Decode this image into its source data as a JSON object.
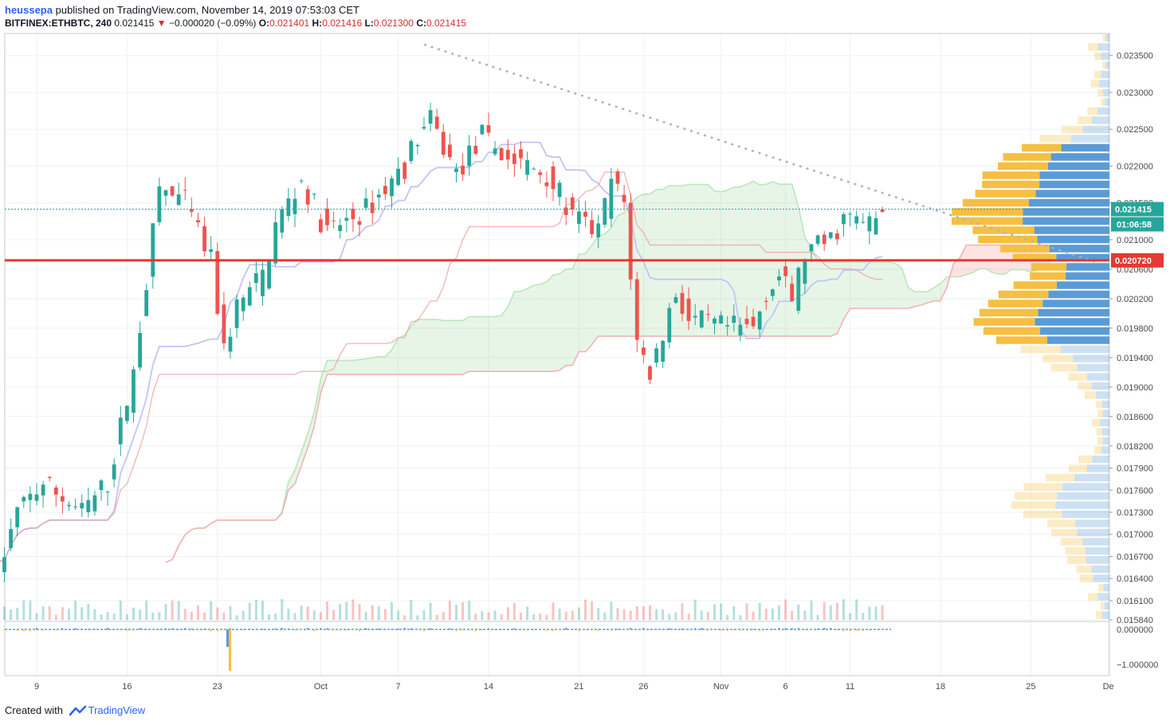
{
  "header": {
    "user": "heussepa",
    "published": "published on TradingView.com, November 14, 2019 07:53:03 CET",
    "symbol": "BITFINEX:ETHBTC, 240",
    "last": "0.021415",
    "change": "−0.000020 (−0.09%)",
    "o_label": "O:",
    "o": "0.021401",
    "h_label": "H:",
    "h": "0.021416",
    "l_label": "L:",
    "l": "0.021300",
    "c_label": "C:",
    "c": "0.021415"
  },
  "footer": {
    "created_with": "Created with",
    "brand": "TradingView"
  },
  "colors": {
    "up": "#26a69a",
    "down": "#ef5350",
    "support": "#e53935",
    "trend": "#b0b3b8",
    "conv": "#c5c3f5",
    "base": "#ef9a9a",
    "spanA": "#b8e8bc",
    "spanB": "#f3b3b3",
    "vp_up": "#5b9bd5",
    "vp_down": "#f5bf42",
    "price_tag": "#26a69a",
    "support_tag": "#e53935"
  },
  "chart_data": {
    "type": "candlestick",
    "symbol": "BITFINEX:ETHBTC",
    "interval": "240",
    "y_axis": {
      "ticks": [
        "0.023500",
        "0.023000",
        "0.022500",
        "0.022000",
        "0.021500",
        "0.021000",
        "0.020600",
        "0.020200",
        "0.019800",
        "0.019400",
        "0.019000",
        "0.018600",
        "0.018200",
        "0.017900",
        "0.017600",
        "0.017300",
        "0.017000",
        "0.016700",
        "0.016400",
        "0.016100",
        "0.015840"
      ],
      "range": [
        0.01584,
        0.0238
      ]
    },
    "x_axis": {
      "ticks": [
        "9",
        "16",
        "23",
        "Oct",
        "7",
        "14",
        "21",
        "26",
        "Nov",
        "6",
        "11",
        "18",
        "25",
        "De"
      ]
    },
    "last_price": {
      "value": 0.021415,
      "label": "0.021415",
      "countdown": "01:06:58"
    },
    "support_line": {
      "value": 0.02072,
      "label": "0.020720"
    },
    "trend_line": {
      "from": [
        "Oct 9",
        0.02365
      ],
      "to": [
        "Nov 30",
        0.0207
      ]
    },
    "anchors": [
      [
        "Sep 6",
        0.0162
      ],
      [
        "Sep 8",
        0.0173
      ],
      [
        "Sep 10",
        0.0177
      ],
      [
        "Sep 13",
        0.0173
      ],
      [
        "Sep 15",
        0.0177
      ],
      [
        "Sep 17",
        0.0192
      ],
      [
        "Sep 19",
        0.0217
      ],
      [
        "Sep 21",
        0.0215
      ],
      [
        "Sep 23",
        0.0207
      ],
      [
        "Sep 24",
        0.0195
      ],
      [
        "Sep 25",
        0.0201
      ],
      [
        "Sep 27",
        0.0205
      ],
      [
        "Sep 28",
        0.0212
      ],
      [
        "Sep 30",
        0.0218
      ],
      [
        "Oct 2",
        0.0211
      ],
      [
        "Oct 5",
        0.0214
      ],
      [
        "Oct 8",
        0.022
      ],
      [
        "Oct 9",
        0.0224
      ],
      [
        "Oct 10",
        0.0226
      ],
      [
        "Oct 12",
        0.0219
      ],
      [
        "Oct 14",
        0.0224
      ],
      [
        "Oct 16",
        0.0221
      ],
      [
        "Oct 19",
        0.0219
      ],
      [
        "Oct 21",
        0.0213
      ],
      [
        "Oct 23",
        0.0211
      ],
      [
        "Oct 24",
        0.0218
      ],
      [
        "Oct 25",
        0.0215
      ],
      [
        "Oct 26",
        0.0196
      ],
      [
        "Oct 27",
        0.0192
      ],
      [
        "Oct 29",
        0.0203
      ],
      [
        "Oct 30",
        0.0199
      ],
      [
        "Nov 2",
        0.0198
      ],
      [
        "Nov 4",
        0.0198
      ],
      [
        "Nov 5",
        0.0203
      ],
      [
        "Nov 6",
        0.0205
      ],
      [
        "Nov 7",
        0.0202
      ],
      [
        "Nov 8",
        0.0208
      ],
      [
        "Nov 10",
        0.021
      ],
      [
        "Nov 11",
        0.0213
      ],
      [
        "Nov 13",
        0.0212
      ],
      [
        "Nov 14",
        0.0214
      ]
    ],
    "indicators": [
      "Ichimoku Cloud",
      "Volume",
      "Volume Profile",
      "Oscillator"
    ],
    "oscillator_axis": {
      "ticks": [
        "0.000000",
        "−1.000000"
      ]
    }
  }
}
